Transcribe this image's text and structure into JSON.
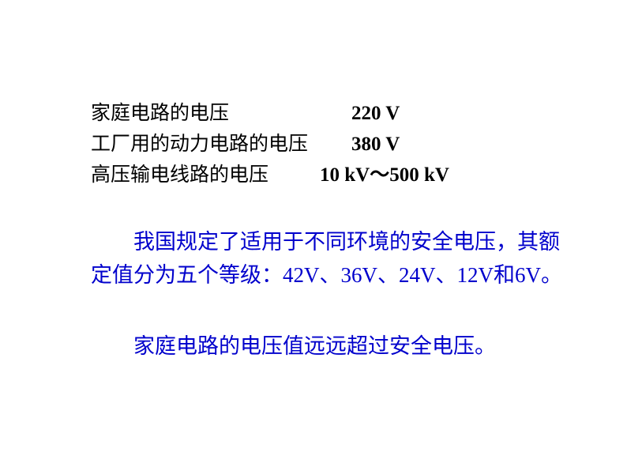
{
  "table": {
    "rows": [
      {
        "label": "家庭电路的电压",
        "value": "220 V",
        "valueClass": "v1"
      },
      {
        "label": "工厂用的动力电路的电压",
        "value": "380 V",
        "valueClass": "v2"
      },
      {
        "label": "高压输电线路的电压",
        "value": "10 kV～500 kV",
        "valueClass": "v3"
      }
    ]
  },
  "paragraph1": {
    "prefix": "我国规定了适用于不同环境的安全电压，其额定值分为五个等级：",
    "v1": "42V",
    "s1": "、",
    "v2": "36V",
    "s2": "、",
    "v3": "24V",
    "s3": "、",
    "v4": "12V",
    "s4": "和",
    "v5": "6V",
    "suffix": "。"
  },
  "paragraph2": "家庭电路的电压值远远超过安全电压。",
  "colors": {
    "text_black": "#000000",
    "text_blue": "#0000cc",
    "background": "#ffffff"
  },
  "typography": {
    "body_fontsize": 25,
    "paragraph_fontsize": 27,
    "chinese_font": "SimSun",
    "number_font": "Times New Roman"
  }
}
